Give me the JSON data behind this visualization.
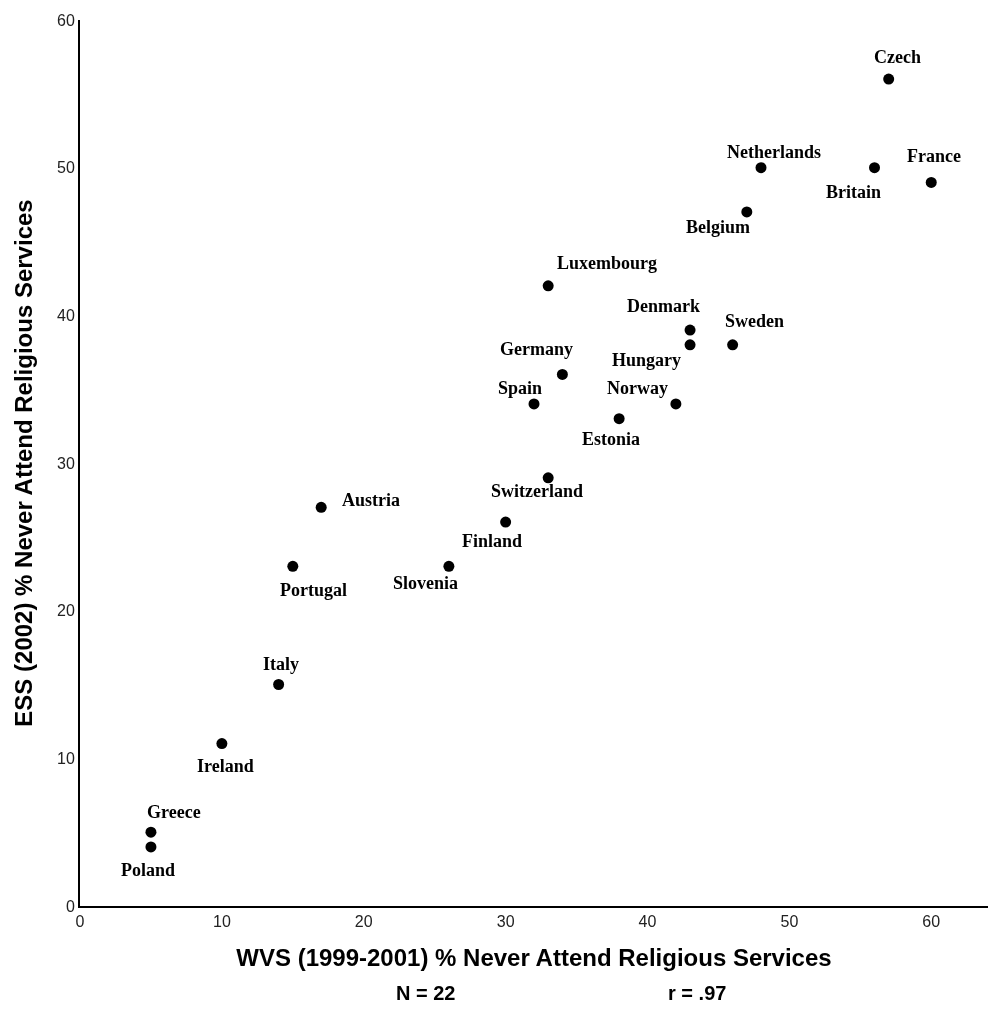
{
  "chart_data": {
    "type": "scatter",
    "xlabel": "WVS (1999-2001) % Never Attend Religious Services",
    "ylabel": "ESS (2002) % Never Attend Religious Services",
    "x": [
      57,
      48,
      56,
      60,
      47,
      33,
      43,
      43,
      46,
      34,
      32,
      42,
      38,
      33,
      30,
      17,
      15,
      26,
      14,
      10,
      5,
      5
    ],
    "series": [
      {
        "color": "#000000",
        "values": [
          56,
          50,
          50,
          49,
          47,
          42,
          39,
          38,
          38,
          36,
          34,
          34,
          33,
          29,
          26,
          27,
          23,
          23,
          15,
          11,
          5,
          4
        ]
      }
    ],
    "marker": "circle",
    "xlim": [
      0,
      64
    ],
    "xticks": [
      0,
      10,
      20,
      30,
      40,
      50,
      60
    ],
    "ylim": [
      0,
      60
    ],
    "yticks": [
      0,
      10,
      20,
      30,
      40,
      50,
      60
    ],
    "grid": false,
    "annotations": [
      {
        "text": "Czech",
        "x": 57,
        "y": 56
      },
      {
        "text": "Netherlands",
        "x": 48,
        "y": 50
      },
      {
        "text": "Britain",
        "x": 56,
        "y": 50
      },
      {
        "text": "France",
        "x": 60,
        "y": 49
      },
      {
        "text": "Belgium",
        "x": 47,
        "y": 47
      },
      {
        "text": "Luxembourg",
        "x": 33,
        "y": 42
      },
      {
        "text": "Denmark",
        "x": 43,
        "y": 39
      },
      {
        "text": "Hungary",
        "x": 43,
        "y": 38
      },
      {
        "text": "Sweden",
        "x": 46,
        "y": 38
      },
      {
        "text": "Germany",
        "x": 34,
        "y": 36
      },
      {
        "text": "Spain",
        "x": 32,
        "y": 34
      },
      {
        "text": "Norway",
        "x": 42,
        "y": 34
      },
      {
        "text": "Estonia",
        "x": 38,
        "y": 33
      },
      {
        "text": "Switzerland",
        "x": 33,
        "y": 29
      },
      {
        "text": "Finland",
        "x": 30,
        "y": 26
      },
      {
        "text": "Austria",
        "x": 17,
        "y": 27
      },
      {
        "text": "Portugal",
        "x": 15,
        "y": 23
      },
      {
        "text": "Slovenia",
        "x": 26,
        "y": 23
      },
      {
        "text": "Italy",
        "x": 14,
        "y": 15
      },
      {
        "text": "Ireland",
        "x": 10,
        "y": 11
      },
      {
        "text": "Greece",
        "x": 5,
        "y": 5
      },
      {
        "text": "Poland",
        "x": 5,
        "y": 4
      },
      "N = 22",
      "r = .97"
    ]
  }
}
